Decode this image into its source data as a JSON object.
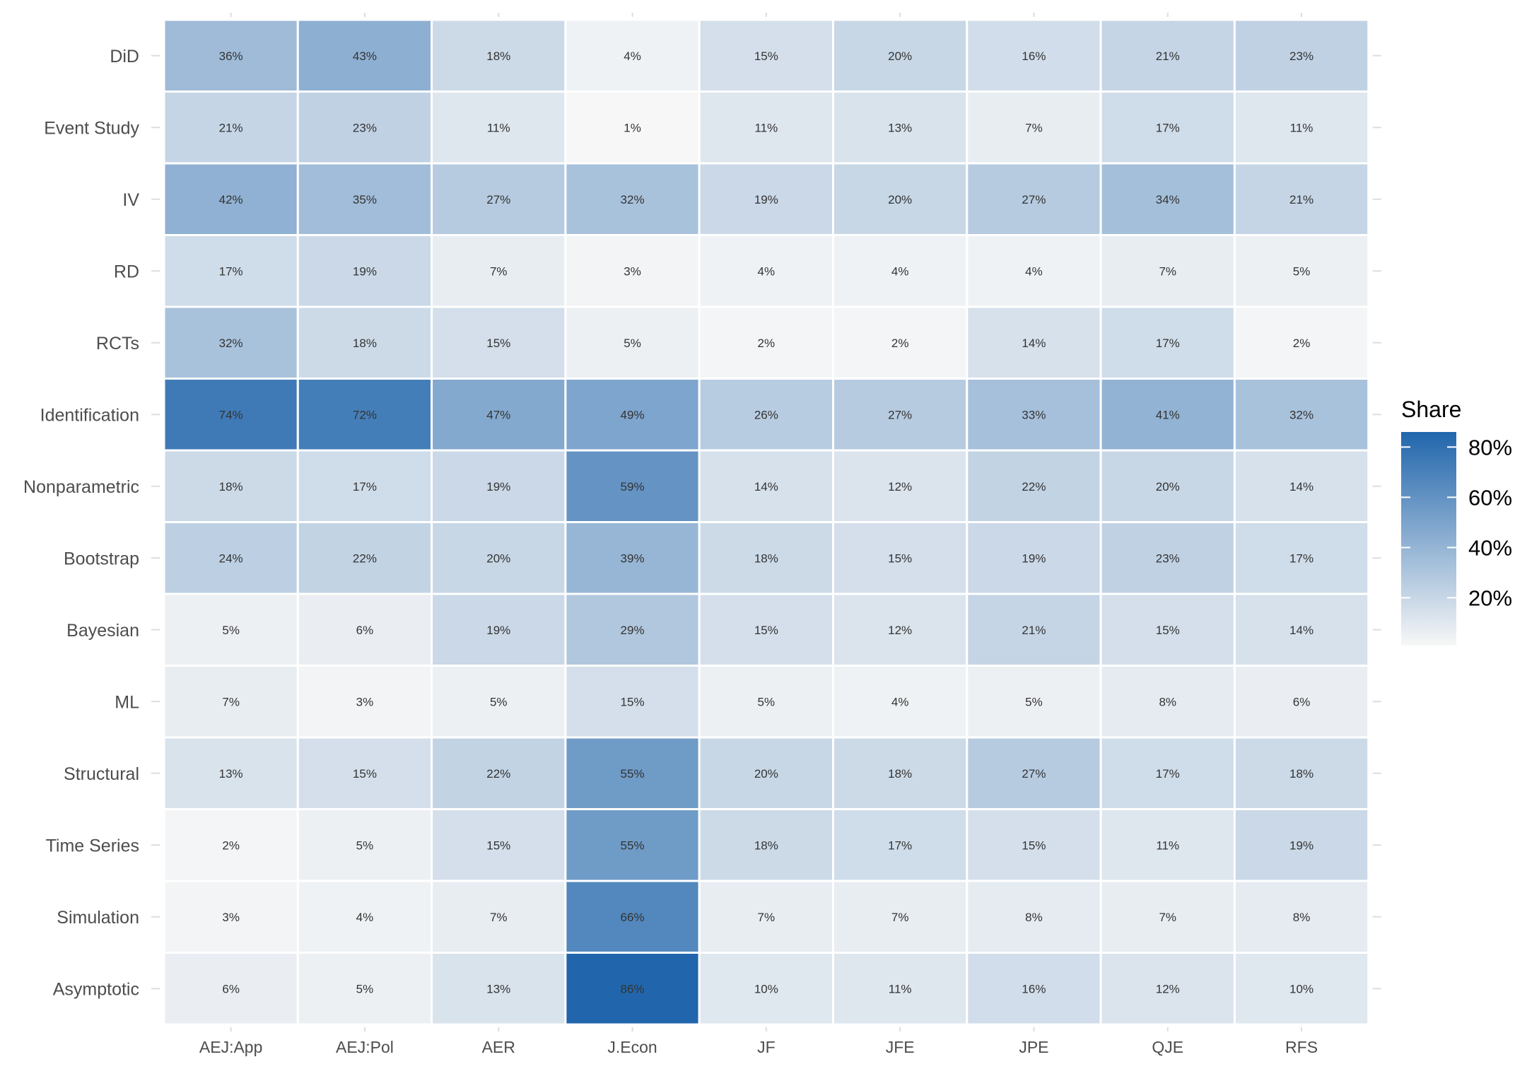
{
  "chart_data": {
    "type": "heatmap",
    "title": "",
    "xlabel": "",
    "ylabel": "",
    "columns": [
      "AEJ:App",
      "AEJ:Pol",
      "AER",
      "J.Econ",
      "JF",
      "JFE",
      "JPE",
      "QJE",
      "RFS"
    ],
    "rows": [
      "DiD",
      "Event Study",
      "IV",
      "RD",
      "RCTs",
      "Identification",
      "Nonparametric",
      "Bootstrap",
      "Bayesian",
      "ML",
      "Structural",
      "Time Series",
      "Simulation",
      "Asymptotic"
    ],
    "values": [
      [
        36,
        43,
        18,
        4,
        15,
        20,
        16,
        21,
        23
      ],
      [
        21,
        23,
        11,
        1,
        11,
        13,
        7,
        17,
        11
      ],
      [
        42,
        35,
        27,
        32,
        19,
        20,
        27,
        34,
        21
      ],
      [
        17,
        19,
        7,
        3,
        4,
        4,
        4,
        7,
        5
      ],
      [
        32,
        18,
        15,
        5,
        2,
        2,
        14,
        17,
        2
      ],
      [
        74,
        72,
        47,
        49,
        26,
        27,
        33,
        41,
        32
      ],
      [
        18,
        17,
        19,
        59,
        14,
        12,
        22,
        20,
        14
      ],
      [
        24,
        22,
        20,
        39,
        18,
        15,
        19,
        23,
        17
      ],
      [
        5,
        6,
        19,
        29,
        15,
        12,
        21,
        15,
        14
      ],
      [
        7,
        3,
        5,
        15,
        5,
        4,
        5,
        8,
        6
      ],
      [
        13,
        15,
        22,
        55,
        20,
        18,
        27,
        17,
        18
      ],
      [
        2,
        5,
        15,
        55,
        18,
        17,
        15,
        11,
        19
      ],
      [
        3,
        4,
        7,
        66,
        7,
        7,
        8,
        7,
        8
      ],
      [
        6,
        5,
        13,
        86,
        10,
        11,
        16,
        12,
        10
      ]
    ],
    "value_suffix": "%",
    "legend": {
      "title": "Share",
      "ticks": [
        20,
        40,
        60,
        80
      ],
      "tick_labels": [
        "20%",
        "40%",
        "60%",
        "80%"
      ],
      "range": [
        1,
        86
      ],
      "placement": "right"
    },
    "color_low": "#f7f7f7",
    "color_high": "#2166ac"
  }
}
